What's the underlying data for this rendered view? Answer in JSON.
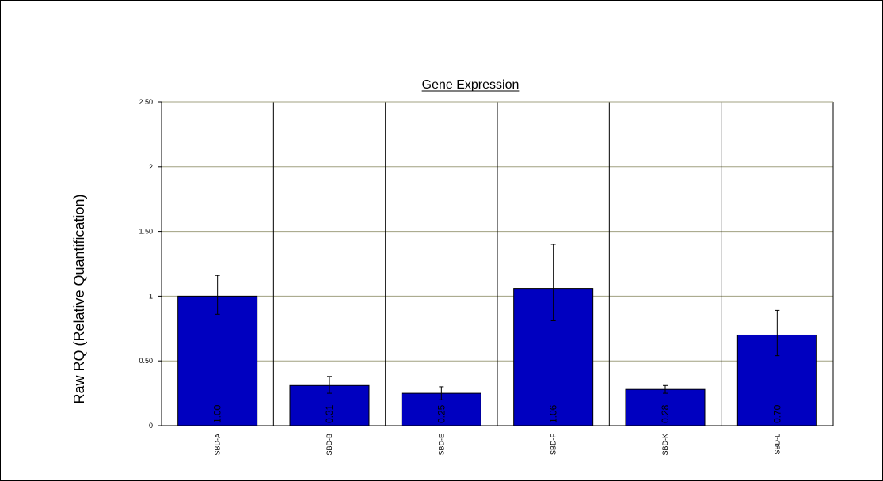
{
  "chart_data": {
    "type": "bar",
    "title": "Gene Expression",
    "xlabel": "",
    "ylabel": "Raw RQ (Relative Quantification)",
    "ylim": [
      0,
      2.5
    ],
    "yticks": [
      {
        "value": 0,
        "label": "0"
      },
      {
        "value": 0.5,
        "label": "0.50"
      },
      {
        "value": 1,
        "label": "1"
      },
      {
        "value": 1.5,
        "label": "1.50"
      },
      {
        "value": 2,
        "label": "2"
      },
      {
        "value": 2.5,
        "label": "2.50"
      }
    ],
    "categories": [
      "SBD-A",
      "SBD-B",
      "SBD-E",
      "SBD-F",
      "SBD-K",
      "SBD-L"
    ],
    "values": [
      1.0,
      0.31,
      0.25,
      1.06,
      0.28,
      0.7
    ],
    "value_labels": [
      "1.00",
      "0.31",
      "0.25",
      "1.06",
      "0.28",
      "0.70"
    ],
    "error_bars": [
      {
        "low": 0.86,
        "high": 1.16
      },
      {
        "low": 0.25,
        "high": 0.38
      },
      {
        "low": 0.2,
        "high": 0.3
      },
      {
        "low": 0.81,
        "high": 1.4
      },
      {
        "low": 0.25,
        "high": 0.31
      },
      {
        "low": 0.54,
        "high": 0.89
      }
    ],
    "grid": true,
    "legend": "none",
    "colors": {
      "bar": "#0000C0",
      "bar_edge": "#000000",
      "gridline": "#A0A080",
      "axis": "#000000"
    }
  }
}
